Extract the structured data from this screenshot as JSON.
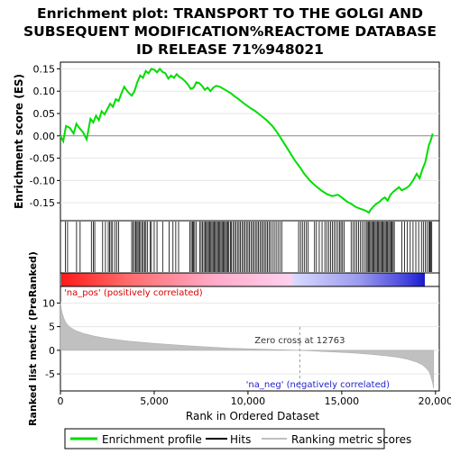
{
  "chart_data": {
    "type": "line",
    "title": "Enrichment plot: TRANSPORT TO THE GOLGI AND SUBSEQUENT MODIFICATION%REACTOME DATABASE ID RELEASE 71%948021",
    "title_lines": [
      "Enrichment plot: TRANSPORT TO THE GOLGI AND",
      "SUBSEQUENT MODIFICATION%REACTOME DATABASE",
      "ID RELEASE 71%948021"
    ],
    "es_panel": {
      "ylabel": "Enrichment score (ES)",
      "ylim": [
        -0.19,
        0.165
      ],
      "yticks": [
        -0.15,
        -0.1,
        -0.05,
        0.0,
        0.05,
        0.1,
        0.15
      ],
      "ytick_labels": [
        "-0.15",
        "-0.10",
        "-0.05",
        "0.00",
        "0.05",
        "0.10",
        "0.15"
      ],
      "series": [
        {
          "name": "Enrichment profile",
          "color": "#00dd00",
          "x": [
            0,
            150,
            300,
            500,
            700,
            850,
            1000,
            1200,
            1400,
            1600,
            1750,
            1900,
            2050,
            2200,
            2350,
            2500,
            2650,
            2800,
            2950,
            3100,
            3250,
            3400,
            3600,
            3800,
            3950,
            4100,
            4250,
            4400,
            4550,
            4700,
            4850,
            5000,
            5150,
            5300,
            5450,
            5600,
            5750,
            5900,
            6050,
            6200,
            6350,
            6500,
            6650,
            6800,
            6950,
            7100,
            7250,
            7400,
            7550,
            7700,
            7850,
            8000,
            8150,
            8300,
            8500,
            8700,
            8900,
            9100,
            9300,
            9500,
            9800,
            10100,
            10400,
            10700,
            11000,
            11300,
            11600,
            11900,
            12200,
            12500,
            12763,
            13000,
            13300,
            13600,
            13900,
            14200,
            14500,
            14800,
            15000,
            15150,
            15300,
            15500,
            15700,
            15900,
            16100,
            16300,
            16450,
            16550,
            16700,
            16850,
            17000,
            17150,
            17300,
            17450,
            17600,
            17750,
            17900,
            18050,
            18200,
            18400,
            18600,
            18800,
            19000,
            19150,
            19300,
            19450,
            19550,
            19650,
            19750,
            19850
          ],
          "y": [
            0.0,
            -0.012,
            0.022,
            0.018,
            0.005,
            0.027,
            0.018,
            0.008,
            -0.008,
            0.038,
            0.03,
            0.045,
            0.035,
            0.055,
            0.048,
            0.06,
            0.072,
            0.065,
            0.082,
            0.078,
            0.095,
            0.11,
            0.098,
            0.09,
            0.1,
            0.12,
            0.135,
            0.13,
            0.145,
            0.14,
            0.15,
            0.148,
            0.142,
            0.15,
            0.143,
            0.14,
            0.128,
            0.135,
            0.13,
            0.138,
            0.132,
            0.128,
            0.122,
            0.115,
            0.105,
            0.108,
            0.12,
            0.118,
            0.112,
            0.103,
            0.108,
            0.1,
            0.108,
            0.112,
            0.11,
            0.105,
            0.1,
            0.095,
            0.088,
            0.082,
            0.072,
            0.063,
            0.055,
            0.045,
            0.035,
            0.022,
            0.005,
            -0.015,
            -0.035,
            -0.055,
            -0.07,
            -0.085,
            -0.1,
            -0.112,
            -0.122,
            -0.13,
            -0.135,
            -0.132,
            -0.138,
            -0.143,
            -0.148,
            -0.152,
            -0.158,
            -0.162,
            -0.165,
            -0.168,
            -0.172,
            -0.165,
            -0.158,
            -0.152,
            -0.148,
            -0.142,
            -0.138,
            -0.145,
            -0.132,
            -0.125,
            -0.12,
            -0.115,
            -0.122,
            -0.118,
            -0.112,
            -0.1,
            -0.085,
            -0.095,
            -0.075,
            -0.06,
            -0.04,
            -0.02,
            -0.01,
            0.005
          ]
        }
      ]
    },
    "hits_panel": {
      "legend_name": "Hits",
      "color": "#000000",
      "positions": [
        260,
        380,
        860,
        1050,
        1650,
        1750,
        1830,
        2250,
        2400,
        2550,
        2620,
        2700,
        2780,
        2900,
        3000,
        3100,
        3800,
        3870,
        3950,
        4020,
        4080,
        4140,
        4200,
        4270,
        4350,
        4420,
        4490,
        4560,
        4650,
        4780,
        4850,
        5000,
        5150,
        5450,
        5800,
        6000,
        6150,
        6300,
        6900,
        6980,
        7050,
        7100,
        7160,
        7250,
        7420,
        7500,
        7580,
        7650,
        7720,
        7780,
        7840,
        7900,
        7960,
        8020,
        8080,
        8140,
        8200,
        8260,
        8320,
        8380,
        8440,
        8500,
        8560,
        8620,
        8680,
        8740,
        8800,
        8860,
        8920,
        8980,
        9060,
        9120,
        9200,
        9280,
        9360,
        9440,
        9520,
        9600,
        9680,
        9760,
        9840,
        9920,
        10000,
        10080,
        10160,
        10240,
        10320,
        10400,
        10480,
        10560,
        10640,
        10720,
        10800,
        10880,
        10960,
        11040,
        11120,
        11200,
        11300,
        11400,
        11500,
        11600,
        11700,
        11800,
        12700,
        12800,
        12900,
        13000,
        13100,
        13200,
        13550,
        13650,
        13800,
        13950,
        14100,
        14200,
        14300,
        14400,
        14500,
        14600,
        14700,
        14800,
        14880,
        14960,
        15040,
        15120,
        15500,
        15600,
        15700,
        15800,
        15900,
        16000,
        16100,
        16200,
        16300,
        16360,
        16420,
        16480,
        16540,
        16600,
        16660,
        16720,
        16780,
        16840,
        16900,
        16960,
        17020,
        17080,
        17140,
        17200,
        17260,
        17320,
        17380,
        17440,
        17500,
        17560,
        17620,
        17680,
        17740,
        17800,
        18200,
        18350,
        18500,
        18650,
        18800,
        18950,
        19100,
        19250,
        19350,
        19450,
        19550,
        19650,
        19700,
        19750,
        19800
      ]
    },
    "ranked_panel": {
      "ylabel": "Ranked list metric (PreRanked)",
      "ylim": [
        -8.6,
        13.5
      ],
      "yticks": [
        -5,
        0,
        5,
        10
      ],
      "ytick_labels": [
        "-5",
        "0",
        "5",
        "10"
      ],
      "legend_name": "Ranking metric scores",
      "fill_color": "#c0c0c0",
      "x": [
        0,
        50,
        100,
        200,
        300,
        500,
        800,
        1200,
        1800,
        2500,
        3500,
        5000,
        7000,
        9000,
        11000,
        12763,
        14000,
        15500,
        16500,
        17300,
        18000,
        18500,
        19000,
        19300,
        19500,
        19650,
        19750,
        19850,
        19900
      ],
      "y": [
        10.2,
        8.7,
        7.8,
        6.6,
        5.8,
        4.9,
        4.2,
        3.6,
        3.0,
        2.5,
        2.0,
        1.45,
        0.9,
        0.45,
        0.2,
        0.0,
        -0.25,
        -0.55,
        -0.85,
        -1.15,
        -1.5,
        -1.9,
        -2.5,
        -3.1,
        -3.8,
        -4.5,
        -5.5,
        -7.0,
        -8.1
      ]
    },
    "annotations": {
      "zero_cross_label": "Zero cross at 12763",
      "zero_cross_x": 12763,
      "pos_label": "'na_pos' (positively correlated)",
      "neg_label": "'na_neg' (negatively correlated)",
      "pos_color": "#dd0000",
      "neg_color": "#2222cc"
    },
    "x_axis": {
      "xlabel": "Rank in Ordered Dataset",
      "xlim": [
        0,
        20200
      ],
      "xticks": [
        0,
        5000,
        10000,
        15000,
        20000
      ],
      "xtick_labels": [
        "0",
        "5,000",
        "10,000",
        "15,000",
        "20,000"
      ]
    },
    "legend": {
      "placement": "bottom",
      "entries": [
        "Enrichment profile",
        "Hits",
        "Ranking metric scores"
      ]
    }
  }
}
